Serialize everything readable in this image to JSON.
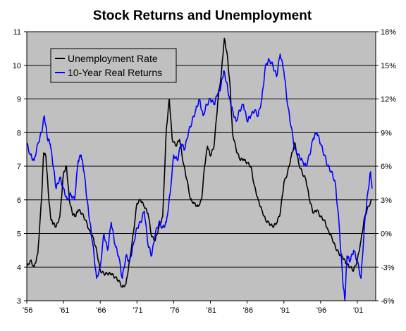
{
  "chart_data": {
    "type": "line",
    "title": "Stock Returns and Unemployment",
    "xlabel": "",
    "ylabel": "",
    "x_tick_labels": [
      "'56",
      "'61",
      "'66",
      "'71",
      "'76",
      "'81",
      "'86",
      "'91",
      "'96",
      "'01"
    ],
    "x_tick_years": [
      1956,
      1961,
      1966,
      1971,
      1976,
      1981,
      1986,
      1991,
      1996,
      2001
    ],
    "xlim": [
      1956,
      2003.5
    ],
    "y_left": {
      "lim": [
        3,
        11
      ],
      "ticks": [
        "3",
        "4",
        "5",
        "6",
        "7",
        "8",
        "9",
        "10",
        "11"
      ]
    },
    "y_right": {
      "lim": [
        -6,
        18
      ],
      "ticks": [
        "-6%",
        "-3%",
        "0%",
        "3%",
        "6%",
        "9%",
        "12%",
        "15%",
        "18%"
      ]
    },
    "grid": true,
    "legend_position": "top-left",
    "plot_background": "#c0c0c0",
    "series": [
      {
        "name": "Unemployment Rate",
        "axis": "left",
        "color": "#000000",
        "x": [
          1956.0,
          1956.5,
          1957.0,
          1957.5,
          1958.0,
          1958.3,
          1958.6,
          1959.0,
          1959.3,
          1959.6,
          1960.0,
          1960.5,
          1961.0,
          1961.4,
          1961.8,
          1962.2,
          1962.6,
          1963.0,
          1963.5,
          1964.0,
          1964.5,
          1965.0,
          1965.5,
          1966.0,
          1966.5,
          1967.0,
          1967.5,
          1968.0,
          1968.5,
          1969.0,
          1969.5,
          1970.0,
          1970.5,
          1971.0,
          1971.5,
          1972.0,
          1972.5,
          1973.0,
          1973.5,
          1974.0,
          1974.5,
          1975.0,
          1975.4,
          1975.8,
          1976.3,
          1976.8,
          1977.3,
          1977.8,
          1978.3,
          1978.8,
          1979.3,
          1979.8,
          1980.2,
          1980.6,
          1981.0,
          1981.5,
          1982.0,
          1982.5,
          1982.9,
          1983.3,
          1983.7,
          1984.0,
          1984.5,
          1985.0,
          1985.5,
          1986.0,
          1986.5,
          1987.0,
          1987.5,
          1988.0,
          1988.5,
          1989.0,
          1989.5,
          1990.0,
          1990.5,
          1991.0,
          1991.5,
          1992.0,
          1992.5,
          1993.0,
          1993.5,
          1994.0,
          1994.5,
          1995.0,
          1995.5,
          1996.0,
          1996.5,
          1997.0,
          1997.5,
          1998.0,
          1998.5,
          1999.0,
          1999.5,
          2000.0,
          2000.5,
          2001.0,
          2001.5,
          2002.0,
          2002.5,
          2003.0
        ],
        "values": [
          4.0,
          4.2,
          4.0,
          4.4,
          6.0,
          7.4,
          7.3,
          6.0,
          5.4,
          5.3,
          5.2,
          5.5,
          6.8,
          7.0,
          6.0,
          5.6,
          5.5,
          5.7,
          5.6,
          5.4,
          5.1,
          4.9,
          4.5,
          3.9,
          3.8,
          3.8,
          3.8,
          3.7,
          3.6,
          3.4,
          3.5,
          4.2,
          5.0,
          5.9,
          6.0,
          5.8,
          5.6,
          4.9,
          4.8,
          5.2,
          5.5,
          8.1,
          9.0,
          7.8,
          7.6,
          7.8,
          7.1,
          6.6,
          6.0,
          5.9,
          5.8,
          6.0,
          7.0,
          7.6,
          7.3,
          7.6,
          8.9,
          9.8,
          10.8,
          10.3,
          9.3,
          8.0,
          7.5,
          7.2,
          7.2,
          7.1,
          7.0,
          6.4,
          6.0,
          5.7,
          5.4,
          5.3,
          5.2,
          5.3,
          5.6,
          6.5,
          6.8,
          7.3,
          7.7,
          7.1,
          6.8,
          6.6,
          6.0,
          5.6,
          5.7,
          5.5,
          5.4,
          5.1,
          4.9,
          4.6,
          4.4,
          4.3,
          4.1,
          4.0,
          3.9,
          4.2,
          4.8,
          5.5,
          5.8,
          6.0
        ]
      },
      {
        "name": "10-Year Real Returns",
        "axis": "right",
        "color": "#0000ff",
        "x": [
          1956.0,
          1956.5,
          1957.0,
          1957.5,
          1958.0,
          1958.4,
          1958.8,
          1959.2,
          1959.6,
          1960.0,
          1960.5,
          1961.0,
          1961.5,
          1962.0,
          1962.5,
          1963.0,
          1963.4,
          1963.8,
          1964.2,
          1964.6,
          1965.0,
          1965.5,
          1966.0,
          1966.5,
          1967.0,
          1967.5,
          1968.0,
          1968.5,
          1969.0,
          1969.5,
          1970.0,
          1970.5,
          1971.0,
          1971.5,
          1972.0,
          1972.5,
          1973.0,
          1973.5,
          1974.0,
          1974.5,
          1975.0,
          1975.5,
          1976.0,
          1976.5,
          1977.0,
          1977.5,
          1978.0,
          1978.5,
          1979.0,
          1979.5,
          1980.0,
          1980.5,
          1981.0,
          1981.5,
          1982.0,
          1982.4,
          1982.8,
          1983.2,
          1983.6,
          1984.0,
          1984.5,
          1985.0,
          1985.5,
          1986.0,
          1986.5,
          1987.0,
          1987.5,
          1988.0,
          1988.5,
          1989.0,
          1989.5,
          1990.0,
          1990.5,
          1991.0,
          1991.5,
          1992.0,
          1992.5,
          1993.0,
          1993.5,
          1994.0,
          1994.5,
          1995.0,
          1995.5,
          1996.0,
          1996.5,
          1997.0,
          1997.5,
          1998.0,
          1998.5,
          1999.0,
          1999.3,
          1999.6,
          2000.0,
          2000.5,
          2001.0,
          2001.5,
          2002.0,
          2002.4,
          2002.8,
          2003.0
        ],
        "values": [
          8.0,
          7.0,
          6.5,
          8.0,
          9.0,
          10.5,
          8.5,
          8.0,
          6.0,
          4.0,
          5.0,
          4.0,
          3.0,
          3.5,
          3.0,
          6.5,
          7.0,
          5.5,
          3.0,
          1.0,
          -1.0,
          -4.0,
          -3.0,
          0.0,
          -1.5,
          1.0,
          -1.0,
          -2.0,
          -4.0,
          -2.0,
          -2.5,
          -1.0,
          0.5,
          1.0,
          2.0,
          -1.0,
          -2.0,
          0.0,
          1.0,
          0.5,
          1.0,
          3.5,
          7.0,
          6.5,
          8.0,
          7.5,
          9.0,
          10.0,
          11.0,
          12.0,
          10.5,
          11.5,
          12.0,
          11.5,
          12.5,
          13.0,
          14.5,
          13.5,
          12.0,
          11.0,
          10.0,
          11.0,
          11.5,
          10.0,
          10.5,
          11.0,
          10.5,
          12.0,
          15.0,
          15.5,
          15.0,
          14.0,
          16.0,
          14.5,
          11.5,
          9.5,
          7.5,
          7.0,
          6.5,
          6.0,
          7.0,
          8.5,
          9.0,
          8.0,
          7.0,
          6.0,
          5.5,
          4.5,
          1.0,
          -4.0,
          -6.0,
          -2.0,
          -2.5,
          -1.5,
          -2.5,
          -4.0,
          1.0,
          3.5,
          5.5,
          4.0
        ]
      }
    ]
  }
}
